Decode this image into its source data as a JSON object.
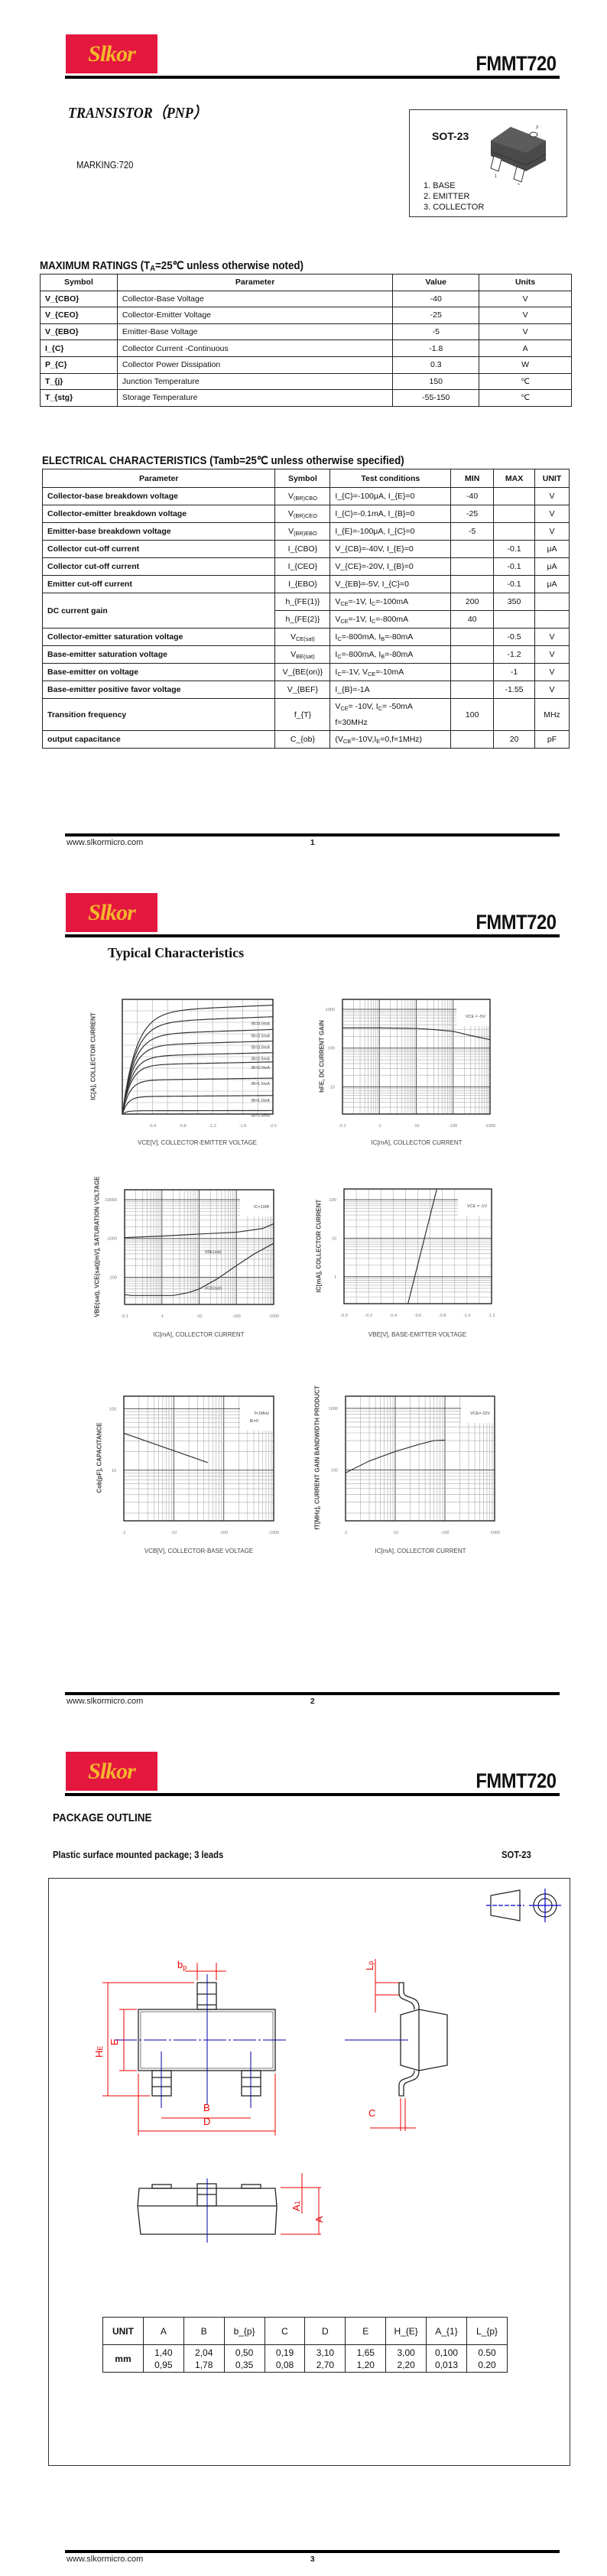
{
  "header": {
    "brand": "Slkor",
    "part": "FMMT720",
    "brand_color": "#e4173e",
    "brand_text_color": "#f3b52c"
  },
  "footer": {
    "url": "www.slkormicro.com",
    "pages": [
      "1",
      "2",
      "3"
    ]
  },
  "page1": {
    "title": "TRANSISTOR（PNP）",
    "marking": "MARKING:720",
    "package_box": {
      "name": "SOT-23",
      "pins": [
        "1.  BASE",
        "2.  EMITTER",
        "3.  COLLECTOR"
      ],
      "pin_numbers": [
        "1",
        "2",
        "3"
      ]
    },
    "max_ratings": {
      "title": "MAXIMUM RATINGS (T_{A}=25℃ unless otherwise noted)",
      "columns": [
        "Symbol",
        "Parameter",
        "Value",
        "Units"
      ],
      "rows": [
        [
          "V_{CBO}",
          "Collector-Base Voltage",
          "-40",
          "V"
        ],
        [
          "V_{CEO}",
          "Collector-Emitter Voltage",
          "-25",
          "V"
        ],
        [
          "V_{EBO}",
          "Emitter-Base Voltage",
          "-5",
          "V"
        ],
        [
          "I_{C}",
          "Collector Current -Continuous",
          "-1.8",
          "A"
        ],
        [
          "P_{C}",
          "Collector Power Dissipation",
          "0.3",
          "W"
        ],
        [
          "T_{j}",
          "Junction Temperature",
          "150",
          "℃"
        ],
        [
          "T_{stg}",
          "Storage Temperature",
          "-55-150",
          "℃"
        ]
      ]
    },
    "electrical": {
      "title": "ELECTRICAL CHARACTERISTICS (Tamb=25℃ unless otherwise specified)",
      "columns": [
        "Parameter",
        "Symbol",
        "Test    conditions",
        "MIN",
        "MAX",
        "UNIT"
      ],
      "rows": [
        {
          "p": "Collector-base breakdown voltage",
          "s": "V_{(BR)CBO}",
          "c": "I_{C}=-100μA,   I_{E}=0",
          "min": "-40",
          "max": "",
          "u": "V"
        },
        {
          "p": "Collector-emitter breakdown voltage",
          "s": "V_{(BR)CEO}",
          "c": "I_{C}=-0.1mA,   I_{B}=0",
          "min": "-25",
          "max": "",
          "u": "V"
        },
        {
          "p": "Emitter-base breakdown voltage",
          "s": "V_{(BR)EBO}",
          "c": "I_{E}=-100μA,   I_{C}=0",
          "min": "-5",
          "max": "",
          "u": "V"
        },
        {
          "p": "Collector cut-off current",
          "s": "I_{CBO}",
          "c": "V_{CB}=-40V,   I_{E}=0",
          "min": "",
          "max": "-0.1",
          "u": "μA"
        },
        {
          "p": "Collector cut-off current",
          "s": "I_{CEO}",
          "c": "V_{CE}=-20V,   I_{B}=0",
          "min": "",
          "max": "-0.1",
          "u": "μA"
        },
        {
          "p": "Emitter cut-off current",
          "s": "I_{EBO}",
          "c": "V_{EB}=-5V,   I_{C}=0",
          "min": "",
          "max": "-0.1",
          "u": "μA"
        },
        {
          "p": "DC current gain",
          "span": 2,
          "s": "h_{FE(1)}",
          "c": "V_{CE}=-1V,   I_{C}=-100mA",
          "min": "200",
          "max": "350",
          "u": ""
        },
        {
          "p": null,
          "s": "h_{FE(2)}",
          "c": "V_{CE}=-1V,   I_{C}=-800mA",
          "min": "40",
          "max": "",
          "u": ""
        },
        {
          "p": "Collector-emitter saturation voltage",
          "s": "V_{CE(sat)}",
          "c": "I_{C}=-800mA,   I_{B}=-80mA",
          "min": "",
          "max": "-0.5",
          "u": "V"
        },
        {
          "p": "Base-emitter saturation voltage",
          "s": "V_{BE(sat)}",
          "c": "I_{C}=-800mA,   I_{B}=-80mA",
          "min": "",
          "max": "-1.2",
          "u": "V"
        },
        {
          "p": "Base-emitter on voltage",
          "s": "V_{BE(on)}",
          "c": "I_{C}=-1V,   V_{CE}=-10mA",
          "min": "",
          "max": "-1",
          "u": "V"
        },
        {
          "p": "Base-emitter positive favor voltage",
          "s": "V_{BEF}",
          "c": "I_{B}=-1A",
          "min": "",
          "max": "-1.55",
          "u": "V"
        },
        {
          "p": "Transition frequency",
          "s": "f_{T}",
          "c": "V_{CE}= -10V,   I_{C}= -50mA|f=30MHz",
          "min": "100",
          "max": "",
          "u": "MHz",
          "tall": true
        },
        {
          "p": "output capacitance",
          "s": "C_{ob}",
          "c": "(V_{CB}=-10V,I_{E}=0,f=1MHz)",
          "min": "",
          "max": "20",
          "u": "pF"
        }
      ]
    }
  },
  "page2": {
    "title": "Typical Characteristics"
  },
  "chart_data": [
    {
      "type": "line",
      "title": "",
      "xlabel": "VCE[V], COLLECTOR-EMITTER VOLTAGE",
      "ylabel": "IC[A], COLLECTOR CURRENT",
      "xscale": "linear",
      "yscale": "linear",
      "xlim": [
        0,
        2.0
      ],
      "ylim": [
        0,
        1
      ],
      "xgrid": 0.2,
      "ygrid": 0.1,
      "xticks": [
        {
          "v": 0.4,
          "label": "-0.4"
        },
        {
          "v": 0.8,
          "label": "-0.8"
        },
        {
          "v": 1.2,
          "label": "-1.2"
        },
        {
          "v": 1.6,
          "label": "-1.6"
        },
        {
          "v": 2.0,
          "label": "-2.0"
        }
      ],
      "yticks": [],
      "series": [
        {
          "name": "",
          "saturation_rel": 0.94
        },
        {
          "name": "IB=4.0mA",
          "saturation_rel": 0.84
        },
        {
          "name": "IB=3.5mA",
          "saturation_rel": 0.73
        },
        {
          "name": "IB=3.0mA",
          "saturation_rel": 0.63
        },
        {
          "name": "IB=2.5mA",
          "saturation_rel": 0.53
        },
        {
          "name": "IB=2.0mA",
          "saturation_rel": 0.45
        },
        {
          "name": "IB=1.5mA",
          "saturation_rel": 0.31
        },
        {
          "name": "IB=1.0mA",
          "saturation_rel": 0.16
        },
        {
          "name": "IB=0.5mA",
          "saturation_rel": 0.03
        }
      ],
      "annotation": ""
    },
    {
      "type": "line",
      "xlabel": "IC[mA], COLLECTOR CURRENT",
      "ylabel": "hFE, DC CURRENT GAIN",
      "xscale": "log",
      "yscale": "log",
      "xlim": [
        0.1,
        1000
      ],
      "ylim": [
        2,
        1800
      ],
      "xticks": [
        {
          "v": 0.1,
          "label": "-0.1"
        },
        {
          "v": 1,
          "label": "-1"
        },
        {
          "v": 10,
          "label": "-10"
        },
        {
          "v": 100,
          "label": "-100"
        },
        {
          "v": 1000,
          "label": "-1000"
        }
      ],
      "yticks": [
        {
          "v": 1000,
          "label": "1000"
        },
        {
          "v": 100,
          "label": "100"
        },
        {
          "v": 10,
          "label": "10"
        }
      ],
      "series": [
        {
          "name": "hFE",
          "x": [
            0.1,
            1,
            5,
            10,
            30,
            100,
            300,
            1000
          ],
          "y": [
            330,
            330,
            325,
            320,
            300,
            270,
            210,
            165
          ]
        }
      ],
      "annotation": "VCE = -5V"
    },
    {
      "type": "line",
      "xlabel": "IC[mA], COLLECTOR CURRENT",
      "ylabel": "VBE(sat), VCE(sat)[mV], SATURATION VOLTAGE",
      "xscale": "log",
      "yscale": "log",
      "xlim": [
        0.1,
        1000
      ],
      "ylim": [
        20,
        18000
      ],
      "xticks": [
        {
          "v": 0.1,
          "label": "-0.1"
        },
        {
          "v": 1,
          "label": "-1"
        },
        {
          "v": 10,
          "label": "-10"
        },
        {
          "v": 100,
          "label": "-100"
        },
        {
          "v": 1000,
          "label": "-1000"
        }
      ],
      "yticks": [
        {
          "v": 10000,
          "label": "-10000"
        },
        {
          "v": 1000,
          "label": "-1000"
        },
        {
          "v": 100,
          "label": "-100"
        }
      ],
      "series": [
        {
          "name": "VBE(sat)",
          "x": [
            0.1,
            1,
            10,
            100,
            500,
            1000
          ],
          "y": [
            1050,
            1150,
            1300,
            1450,
            1800,
            2400
          ],
          "label_at": [
            14,
            420
          ]
        },
        {
          "name": "VCE(sat)",
          "x": [
            0.1,
            0.15,
            2,
            5,
            10,
            30,
            100,
            300,
            1000
          ],
          "y": [
            36,
            34,
            34,
            40,
            50,
            90,
            200,
            400,
            750
          ],
          "label_at": [
            14,
            48
          ]
        }
      ],
      "annotation": "IC=10IB"
    },
    {
      "type": "line",
      "xlabel": "VBE[V], BASE-EMITTER VOLTAGE",
      "ylabel": "IC[mA], COLLECTOR CURRENT",
      "xscale": "linear",
      "yscale": "log",
      "xlim": [
        0,
        1.2
      ],
      "ylim": [
        0.2,
        190
      ],
      "xgrid": 0.1,
      "xticks": [
        {
          "v": 0,
          "label": "-0.0"
        },
        {
          "v": 0.2,
          "label": "-0.2"
        },
        {
          "v": 0.4,
          "label": "-0.4"
        },
        {
          "v": 0.6,
          "label": "-0.6"
        },
        {
          "v": 0.8,
          "label": "-0.8"
        },
        {
          "v": 1.0,
          "label": "-1.0"
        },
        {
          "v": 1.2,
          "label": "-1.2"
        }
      ],
      "yticks": [
        {
          "v": 100,
          "label": "-100"
        },
        {
          "v": 10,
          "label": "10"
        },
        {
          "v": 1,
          "label": "1"
        }
      ],
      "series": [
        {
          "name": "IC",
          "x": [
            0.52,
            0.755
          ],
          "y": [
            0.2,
            190
          ]
        }
      ],
      "annotation": "VCE = -1V"
    },
    {
      "type": "line",
      "xlabel": "VCB[V], COLLECTOR-BASE VOLTAGE",
      "ylabel": "Cob[pF], CAPACITANCE",
      "xscale": "log",
      "yscale": "log",
      "xlim": [
        1,
        1000
      ],
      "ylim": [
        1.5,
        160
      ],
      "xticks": [
        {
          "v": 1,
          "label": "-1"
        },
        {
          "v": 10,
          "label": "-10"
        },
        {
          "v": 100,
          "label": "-100"
        },
        {
          "v": 1000,
          "label": "-1000"
        }
      ],
      "yticks": [
        {
          "v": 100,
          "label": "100"
        },
        {
          "v": 10,
          "label": "10"
        }
      ],
      "series": [
        {
          "name": "Cob",
          "x": [
            1,
            48
          ],
          "y": [
            40,
            13.3
          ]
        }
      ],
      "annotation": "f=1MHz",
      "annotation2": "IE=0"
    },
    {
      "type": "line",
      "xlabel": "IC[mA], COLLECTOR CURRENT",
      "ylabel": "fT[MHz], CURRENT GAIN BANDWIDTH PRODUCT",
      "xscale": "log",
      "yscale": "log",
      "xlim": [
        1,
        1000
      ],
      "ylim": [
        15,
        1575
      ],
      "xticks": [
        {
          "v": 1,
          "label": "-1"
        },
        {
          "v": 10,
          "label": "-10"
        },
        {
          "v": 100,
          "label": "-100"
        },
        {
          "v": 1000,
          "label": "-1000"
        }
      ],
      "yticks": [
        {
          "v": 1000,
          "label": "1000"
        },
        {
          "v": 100,
          "label": "100"
        }
      ],
      "series": [
        {
          "name": "fT",
          "x": [
            1,
            3,
            10,
            30,
            60,
            100
          ],
          "y": [
            90,
            140,
            200,
            260,
            300,
            305
          ]
        }
      ],
      "annotation": "VCE=-10V"
    }
  ],
  "page3": {
    "title": "PACKAGE OUTLINE",
    "subtitle": "Plastic surface mounted package; 3 leads",
    "package": "SOT-23",
    "labels": {
      "bp": [
        "b",
        "p"
      ],
      "HE": [
        "H",
        "E"
      ],
      "E": [
        "E",
        ""
      ],
      "B": [
        "B",
        ""
      ],
      "D": [
        "D",
        ""
      ],
      "C": [
        "C",
        ""
      ],
      "Lp": [
        "L",
        "p"
      ],
      "A1": [
        "A",
        "1"
      ],
      "A": [
        "A",
        ""
      ]
    },
    "dims": {
      "header": [
        "UNIT",
        "A",
        "B",
        "b_{p}",
        "C",
        "D",
        "E",
        "H_{E}",
        "A_{1}",
        "L_{p}"
      ],
      "unit": "mm",
      "max": [
        "1,40",
        "2,04",
        "0,50",
        "0,19",
        "3,10",
        "1,65",
        "3,00",
        "0,100",
        "0.50"
      ],
      "min": [
        "0,95",
        "1,78",
        "0,35",
        "0,08",
        "2,70",
        "1,20",
        "2,20",
        "0,013",
        "0.20"
      ]
    }
  }
}
